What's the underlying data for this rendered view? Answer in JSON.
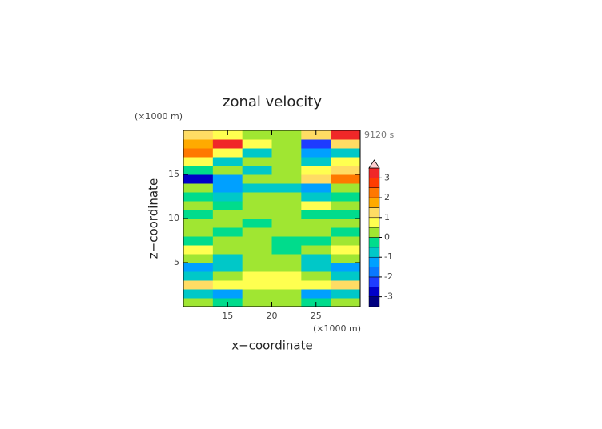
{
  "chart_data": {
    "type": "contour",
    "title": "zonal velocity",
    "time_label": "9120 s",
    "x_label": "x−coordinate",
    "y_label": "z−coordinate",
    "x_unit": "(×1000 m)",
    "y_unit": "(×1000 m)",
    "xlim": [
      10,
      30
    ],
    "ylim": [
      0,
      20
    ],
    "xticks": [
      15,
      20,
      25
    ],
    "yticks": [
      5,
      10,
      15
    ],
    "field": [
      [
        0.2,
        -0.3,
        0.3,
        0.3,
        -0.3,
        0.2
      ],
      [
        -0.8,
        -1.2,
        0.3,
        0.3,
        -1.2,
        -0.8
      ],
      [
        1,
        0.8,
        0.5,
        0.5,
        0.8,
        1
      ],
      [
        -0.7,
        0.3,
        0.6,
        0.6,
        0.3,
        -0.7
      ],
      [
        -1.2,
        -1,
        0.3,
        0.3,
        -1,
        -1.2
      ],
      [
        0.3,
        -0.6,
        0.3,
        0.3,
        -0.6,
        0.3
      ],
      [
        0.8,
        0.3,
        0.2,
        -0.3,
        0.3,
        0.8
      ],
      [
        -0.3,
        0.2,
        0.3,
        -0.3,
        -0.4,
        0.2
      ],
      [
        0.3,
        -0.3,
        0.2,
        0.3,
        0.3,
        -0.3
      ],
      [
        0.2,
        0.3,
        -0.3,
        0.3,
        0.3,
        0.2
      ],
      [
        -0.3,
        0.3,
        0.2,
        0.3,
        -0.3,
        -0.3
      ],
      [
        0.3,
        -0.3,
        0.3,
        0.3,
        0.8,
        0.3
      ],
      [
        -0.3,
        -0.6,
        0.3,
        0.3,
        -0.6,
        -0.3
      ],
      [
        0.3,
        -1.2,
        -0.6,
        -0.6,
        -1.2,
        0.3
      ],
      [
        -2.8,
        -1.5,
        0.3,
        0.3,
        1,
        2.2
      ],
      [
        -0.3,
        0.3,
        -0.6,
        0.3,
        0.8,
        1.2
      ],
      [
        0.8,
        -0.6,
        0.3,
        0.3,
        -0.6,
        0.8
      ],
      [
        2.2,
        0.8,
        -0.6,
        0.3,
        -1.5,
        -0.6
      ],
      [
        1.5,
        3.2,
        0.8,
        0.3,
        -2.2,
        1.2
      ],
      [
        1.2,
        0.8,
        0.3,
        0.3,
        1,
        3.2
      ]
    ],
    "levels": [
      -3.5,
      -3,
      -2.5,
      -2,
      -1.5,
      -1,
      -0.5,
      0,
      0.5,
      1,
      1.5,
      2,
      2.5,
      3,
      3.5
    ],
    "colors": [
      "#000080",
      "#0000c8",
      "#1e3cff",
      "#0a78ff",
      "#00a0ff",
      "#00c8c8",
      "#00dc8c",
      "#a0e632",
      "#ffff50",
      "#ffdc64",
      "#ffaa00",
      "#ff7800",
      "#ff3c00",
      "#f02828",
      "#ffa0a0"
    ],
    "extend_color": "#ffd0d0",
    "cbar_ticks": [
      -3,
      -2,
      -1,
      0,
      1,
      2,
      3
    ]
  }
}
